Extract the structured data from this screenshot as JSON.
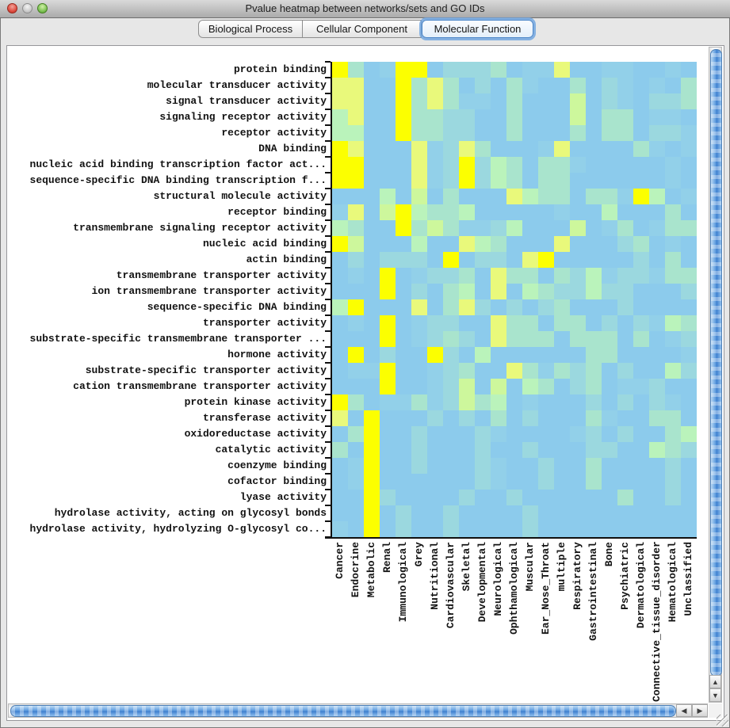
{
  "window": {
    "title": "Pvalue heatmap between networks/sets and GO IDs",
    "traffic_lights": {
      "close": "#DE4B3F",
      "minimize": "#CACACA",
      "zoom": "#7DC254"
    }
  },
  "tabs": [
    {
      "label": "Biological Process",
      "selected": false
    },
    {
      "label": "Cellular Component",
      "selected": false
    },
    {
      "label": "Molecular Function",
      "selected": true
    }
  ],
  "colors": {
    "tab_focus_ring": "#6CA3E0",
    "scrollbar_thumb": "#4E94D9",
    "axis": "#101010"
  },
  "icons": {
    "scroll_up": "▲",
    "scroll_down": "▼",
    "scroll_left": "◀",
    "scroll_right": "▶"
  },
  "chart_data": {
    "type": "heatmap",
    "rows": [
      "protein binding",
      "molecular transducer activity",
      "signal transducer activity",
      "signaling receptor activity",
      "receptor activity",
      "DNA binding",
      "nucleic acid binding transcription factor act...",
      "sequence-specific DNA binding transcription f...",
      "structural molecule activity",
      "receptor binding",
      "transmembrane signaling receptor activity",
      "nucleic acid binding",
      "actin binding",
      "transmembrane transporter activity",
      "ion transmembrane transporter activity",
      "sequence-specific DNA binding",
      "transporter activity",
      "substrate-specific transmembrane transporter ...",
      "hormone activity",
      "substrate-specific transporter activity",
      "cation transmembrane transporter activity",
      "protein kinase activity",
      "transferase activity",
      "oxidoreductase activity",
      "catalytic activity",
      "coenzyme binding",
      "cofactor binding",
      "lyase activity",
      "hydrolase activity, acting on glycosyl bonds",
      "hydrolase activity, hydrolyzing O-glycosyl co..."
    ],
    "columns": [
      "Cancer",
      "Endocrine",
      "Metabolic",
      "Renal",
      "Immunological",
      "Grey",
      "Nutritional",
      "Cardiovascular",
      "Skeletal",
      "Developmental",
      "Neurological",
      "Ophthamological",
      "Muscular",
      "Ear_Nose_Throat",
      "multiple",
      "Respiratory",
      "Gastrointestinal",
      "Bone",
      "Psychiatric",
      "Dermatological",
      "Connective_tissue_disorder",
      "Hematological",
      "Unclassified"
    ],
    "palette": {
      "Y": "#FCFF00",
      "y": "#E9F97B",
      "w": "#CDF79C",
      "G": "#BAF3BB",
      "g": "#A9E4CD",
      "t": "#9BD8DF",
      "c": "#92D0E9",
      "b": "#8CCBEC"
    },
    "palette_meaning": "Y = most significant (lowest p-value, bright yellow) through b = not significant (light blue)",
    "cells": [
      "YgbcYYbtttgbccybbccbbcb",
      "yybbYgygbtbgcbbgbtcbcbg",
      "yybbYgygccbgbbbwbtcbttg",
      "GybbYggttbbgbbbwbggbccb",
      "GGbbYggttbbgbbbgbggbttc",
      "Yybbbyctygbbbcybbbbgcbc",
      "YYbbbyctYtGgbggcbbbbbcb",
      "YYbbbyctYtGgbggbbbbbbcb",
      "bbbGbwbgbbbyGggbggcYGbc",
      "cybwYGggGbbbbbcbbGbbbgb",
      "GgbbYgwgcctGbbbwbcgbcgg",
      "YwbbbGbbyGgbbbybbbtgbcb",
      "btbtttbYbttbyYbbbbbtbgb",
      "bcbYbcttgbyggbgtGcttcgg",
      "bbbYbtbgGbybGgttGttbbbt",
      "GYbbbybgytbtbtgbbbtbbbb",
      "bcbYbcttbbyggbggbtbtcGg",
      "bbbYbctgtbygggbgggbgbct",
      "bYbtbbYtbGbbbbbbggbbbbc",
      "bccYbbctgbbygcgtgbtbbGt",
      "bbbYbbctwbwbGgbtgbcctbb",
      "YgbccgctwgGbcbbbtbtbtcb",
      "ybYbbbtbtbgbtbbbgcbbggb",
      "bgYbbtbbbtcbbbbctbtbbgG",
      "gbYbbtbbbtbbtbbbttbbGgt",
      "bcYbbtbbbtcbbtbbgbbbbtb",
      "bcYbbbbbbtcbbtbbgbbbbtb",
      "bbYtbbbbtbbtbbbbbbgbbtb",
      "bbYbtbbtbbbbtbbbbbbbbbb",
      "cbYbtbbtbbbbtbbbbbbbbbb"
    ]
  }
}
